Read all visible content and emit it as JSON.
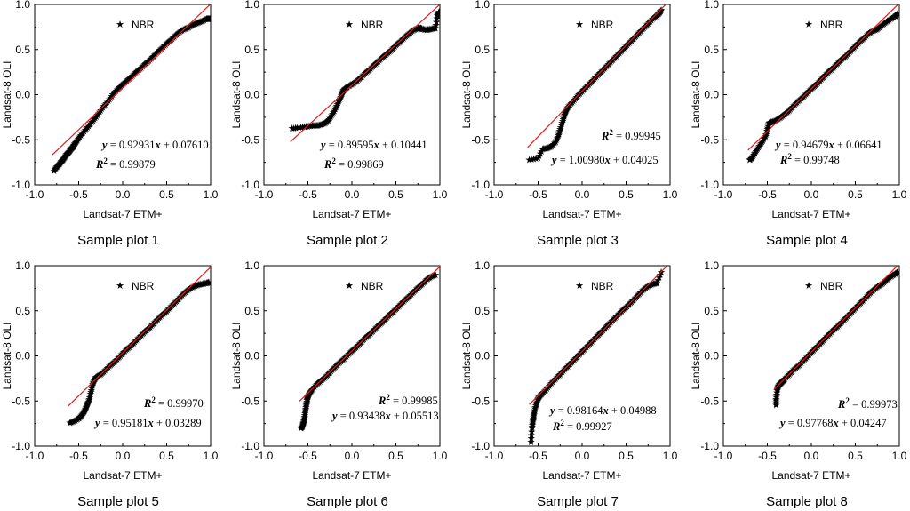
{
  "figure": {
    "legend_label": "NBR",
    "x_label": "Landsat-7 ETM+",
    "y_label": "Landsat-8 OLI",
    "tick_labels": [
      "-1.0",
      "-0.5",
      "0.0",
      "0.5",
      "1.0"
    ],
    "colors": {
      "fit_line": "#e31a1c",
      "points": "#000000"
    }
  },
  "chart_data": [
    {
      "type": "scatter",
      "title": "Sample plot 1",
      "xlabel": "Landsat-7 ETM+",
      "ylabel": "Landsat-8 OLI",
      "xlim": [
        -1.0,
        1.0
      ],
      "ylim": [
        -1.0,
        1.0
      ],
      "legend": "NBR",
      "fit": {
        "slope": 0.92931,
        "intercept": 0.0761,
        "r2": 0.99879
      },
      "equation": {
        "y_part": "y",
        "mid": " = 0.92931",
        "x_part": "x",
        "tail": " + 0.07610"
      },
      "r2_text": {
        "r_part": "R",
        "sup": "2",
        "tail": " = 0.99879"
      },
      "series": {
        "name": "NBR",
        "x": [
          -0.78,
          -0.75,
          -0.72,
          -0.7,
          -0.68,
          -0.66,
          -0.64,
          -0.62,
          -0.6,
          -0.58,
          -0.56,
          -0.55,
          -0.53,
          -0.5,
          -0.45,
          -0.4,
          -0.35,
          -0.3,
          -0.25,
          -0.2,
          -0.15,
          -0.1,
          -0.05,
          0.0,
          0.05,
          0.1,
          0.15,
          0.2,
          0.25,
          0.3,
          0.35,
          0.4,
          0.45,
          0.5,
          0.55,
          0.6,
          0.65,
          0.7,
          0.75,
          0.8,
          0.85,
          0.9,
          0.95,
          0.97,
          0.99
        ],
        "y": [
          -0.84,
          -0.8,
          -0.77,
          -0.74,
          -0.72,
          -0.69,
          -0.66,
          -0.64,
          -0.62,
          -0.59,
          -0.57,
          -0.55,
          -0.52,
          -0.48,
          -0.42,
          -0.36,
          -0.3,
          -0.24,
          -0.17,
          -0.11,
          -0.05,
          0.02,
          0.07,
          0.12,
          0.16,
          0.2,
          0.25,
          0.29,
          0.34,
          0.38,
          0.43,
          0.48,
          0.52,
          0.57,
          0.61,
          0.66,
          0.7,
          0.73,
          0.75,
          0.78,
          0.8,
          0.82,
          0.84,
          0.84,
          0.84
        ]
      }
    },
    {
      "type": "scatter",
      "title": "Sample plot 2",
      "xlabel": "Landsat-7 ETM+",
      "ylabel": "Landsat-8 OLI",
      "xlim": [
        -1.0,
        1.0
      ],
      "ylim": [
        -1.0,
        1.0
      ],
      "legend": "NBR",
      "fit": {
        "slope": 0.89595,
        "intercept": 0.10441,
        "r2": 0.99869
      },
      "equation": {
        "y_part": "y",
        "mid": " = 0.89595",
        "x_part": "x",
        "tail": " + 0.10441"
      },
      "r2_text": {
        "r_part": "R",
        "sup": "2",
        "tail": " = 0.99869"
      },
      "series": {
        "name": "NBR",
        "x": [
          -0.68,
          -0.6,
          -0.52,
          -0.45,
          -0.4,
          -0.35,
          -0.3,
          -0.26,
          -0.22,
          -0.18,
          -0.15,
          -0.12,
          -0.1,
          -0.08,
          -0.05,
          0.0,
          0.05,
          0.1,
          0.15,
          0.2,
          0.25,
          0.3,
          0.35,
          0.4,
          0.45,
          0.5,
          0.55,
          0.6,
          0.65,
          0.7,
          0.75,
          0.78,
          0.8,
          0.85,
          0.9,
          0.95,
          0.97,
          0.99
        ],
        "y": [
          -0.37,
          -0.36,
          -0.35,
          -0.34,
          -0.34,
          -0.33,
          -0.31,
          -0.27,
          -0.21,
          -0.14,
          -0.07,
          -0.01,
          0.04,
          0.07,
          0.09,
          0.12,
          0.15,
          0.19,
          0.24,
          0.28,
          0.33,
          0.37,
          0.42,
          0.46,
          0.5,
          0.55,
          0.59,
          0.64,
          0.68,
          0.72,
          0.74,
          0.74,
          0.73,
          0.72,
          0.73,
          0.74,
          0.88,
          0.92
        ]
      }
    },
    {
      "type": "scatter",
      "title": "Sample plot 3",
      "xlabel": "Landsat-7 ETM+",
      "ylabel": "Landsat-8 OLI",
      "xlim": [
        -1.0,
        1.0
      ],
      "ylim": [
        -1.0,
        1.0
      ],
      "legend": "NBR",
      "fit": {
        "slope": 1.0098,
        "intercept": 0.04025,
        "r2": 0.99945
      },
      "equation": {
        "y_part": "y",
        "mid": " = 1.00980",
        "x_part": "x",
        "tail": " + 0.04025"
      },
      "r2_text": {
        "r_part": "R",
        "sup": "2",
        "tail": " = 0.99945"
      },
      "series": {
        "name": "NBR",
        "x": [
          -0.6,
          -0.5,
          -0.45,
          -0.4,
          -0.35,
          -0.3,
          -0.27,
          -0.25,
          -0.22,
          -0.2,
          -0.18,
          -0.15,
          -0.1,
          -0.05,
          0.0,
          0.05,
          0.1,
          0.15,
          0.2,
          0.25,
          0.3,
          0.35,
          0.4,
          0.45,
          0.5,
          0.55,
          0.6,
          0.65,
          0.7,
          0.75,
          0.8,
          0.85,
          0.88,
          0.9
        ],
        "y": [
          -0.72,
          -0.7,
          -0.6,
          -0.59,
          -0.57,
          -0.52,
          -0.45,
          -0.38,
          -0.29,
          -0.22,
          -0.17,
          -0.12,
          -0.07,
          -0.01,
          0.04,
          0.09,
          0.14,
          0.19,
          0.24,
          0.29,
          0.34,
          0.39,
          0.44,
          0.49,
          0.54,
          0.59,
          0.64,
          0.69,
          0.74,
          0.79,
          0.84,
          0.88,
          0.91,
          0.94
        ]
      }
    },
    {
      "type": "scatter",
      "title": "Sample plot 4",
      "xlabel": "Landsat-7 ETM+",
      "ylabel": "Landsat-8 OLI",
      "xlim": [
        -1.0,
        1.0
      ],
      "ylim": [
        -1.0,
        1.0
      ],
      "legend": "NBR",
      "fit": {
        "slope": 0.94679,
        "intercept": 0.06641,
        "r2": 0.99748
      },
      "equation": {
        "y_part": "y",
        "mid": " = 0.94679",
        "x_part": "x",
        "tail": " + 0.06641"
      },
      "r2_text": {
        "r_part": "R",
        "sup": "2",
        "tail": " = 0.99748"
      },
      "series": {
        "name": "NBR",
        "x": [
          -0.7,
          -0.67,
          -0.64,
          -0.6,
          -0.56,
          -0.52,
          -0.5,
          -0.48,
          -0.45,
          -0.4,
          -0.35,
          -0.3,
          -0.25,
          -0.2,
          -0.15,
          -0.1,
          -0.05,
          0.0,
          0.05,
          0.1,
          0.15,
          0.2,
          0.25,
          0.3,
          0.35,
          0.4,
          0.45,
          0.5,
          0.55,
          0.6,
          0.65,
          0.7,
          0.75,
          0.8,
          0.85,
          0.9,
          0.95,
          0.98
        ],
        "y": [
          -0.72,
          -0.69,
          -0.64,
          -0.58,
          -0.52,
          -0.46,
          -0.38,
          -0.31,
          -0.3,
          -0.28,
          -0.25,
          -0.21,
          -0.17,
          -0.12,
          -0.07,
          -0.03,
          0.02,
          0.07,
          0.11,
          0.16,
          0.21,
          0.26,
          0.3,
          0.35,
          0.4,
          0.44,
          0.49,
          0.54,
          0.59,
          0.63,
          0.68,
          0.71,
          0.73,
          0.77,
          0.81,
          0.84,
          0.87,
          0.9
        ]
      }
    },
    {
      "type": "scatter",
      "title": "Sample plot 5",
      "xlabel": "Landsat-7 ETM+",
      "ylabel": "Landsat-8 OLI",
      "xlim": [
        -1.0,
        1.0
      ],
      "ylim": [
        -1.0,
        1.0
      ],
      "legend": "NBR",
      "fit": {
        "slope": 0.95181,
        "intercept": 0.03289,
        "r2": 0.9997
      },
      "equation": {
        "y_part": "y",
        "mid": " = 0.95181",
        "x_part": "x",
        "tail": " + 0.03289"
      },
      "r2_text": {
        "r_part": "R",
        "sup": "2",
        "tail": " = 0.99970"
      },
      "series": {
        "name": "NBR",
        "x": [
          -0.6,
          -0.55,
          -0.5,
          -0.47,
          -0.44,
          -0.42,
          -0.4,
          -0.38,
          -0.36,
          -0.34,
          -0.32,
          -0.3,
          -0.25,
          -0.2,
          -0.15,
          -0.1,
          -0.05,
          0.0,
          0.05,
          0.1,
          0.15,
          0.2,
          0.25,
          0.3,
          0.35,
          0.4,
          0.45,
          0.5,
          0.55,
          0.6,
          0.65,
          0.7,
          0.75,
          0.8,
          0.85,
          0.9,
          0.95,
          0.98
        ],
        "y": [
          -0.74,
          -0.72,
          -0.69,
          -0.66,
          -0.62,
          -0.58,
          -0.53,
          -0.48,
          -0.4,
          -0.31,
          -0.26,
          -0.23,
          -0.2,
          -0.16,
          -0.11,
          -0.07,
          -0.02,
          0.03,
          0.08,
          0.12,
          0.17,
          0.22,
          0.27,
          0.31,
          0.36,
          0.41,
          0.46,
          0.5,
          0.55,
          0.6,
          0.65,
          0.7,
          0.74,
          0.77,
          0.79,
          0.8,
          0.81,
          0.82
        ]
      }
    },
    {
      "type": "scatter",
      "title": "Sample plot 6",
      "xlabel": "Landsat-7 ETM+",
      "ylabel": "Landsat-8 OLI",
      "xlim": [
        -1.0,
        1.0
      ],
      "ylim": [
        -1.0,
        1.0
      ],
      "legend": "NBR",
      "fit": {
        "slope": 0.93438,
        "intercept": 0.05513,
        "r2": 0.99985
      },
      "equation": {
        "y_part": "y",
        "mid": " = 0.93438",
        "x_part": "x",
        "tail": " + 0.05513"
      },
      "r2_text": {
        "r_part": "R",
        "sup": "2",
        "tail": " = 0.99985"
      },
      "series": {
        "name": "NBR",
        "x": [
          -0.58,
          -0.56,
          -0.55,
          -0.54,
          -0.53,
          -0.52,
          -0.51,
          -0.5,
          -0.48,
          -0.45,
          -0.4,
          -0.35,
          -0.3,
          -0.25,
          -0.2,
          -0.15,
          -0.1,
          -0.05,
          0.0,
          0.05,
          0.1,
          0.15,
          0.2,
          0.25,
          0.3,
          0.35,
          0.4,
          0.45,
          0.5,
          0.55,
          0.6,
          0.65,
          0.7,
          0.75,
          0.8,
          0.85,
          0.9,
          0.95
        ],
        "y": [
          -0.8,
          -0.78,
          -0.74,
          -0.69,
          -0.62,
          -0.55,
          -0.49,
          -0.45,
          -0.41,
          -0.37,
          -0.31,
          -0.27,
          -0.23,
          -0.18,
          -0.13,
          -0.08,
          -0.04,
          0.01,
          0.06,
          0.1,
          0.15,
          0.2,
          0.24,
          0.29,
          0.34,
          0.38,
          0.43,
          0.48,
          0.52,
          0.57,
          0.62,
          0.66,
          0.71,
          0.76,
          0.8,
          0.85,
          0.88,
          0.9
        ]
      }
    },
    {
      "type": "scatter",
      "title": "Sample plot 7",
      "xlabel": "Landsat-7 ETM+",
      "ylabel": "Landsat-8 OLI",
      "xlim": [
        -1.0,
        1.0
      ],
      "ylim": [
        -1.0,
        1.0
      ],
      "legend": "NBR",
      "fit": {
        "slope": 0.98164,
        "intercept": 0.04988,
        "r2": 0.99927
      },
      "equation": {
        "y_part": "y",
        "mid": " = 0.98164",
        "x_part": "x",
        "tail": " + 0.04988"
      },
      "r2_text": {
        "r_part": "R",
        "sup": "2",
        "tail": " = 0.99927"
      },
      "series": {
        "name": "NBR",
        "x": [
          -0.58,
          -0.57,
          -0.56,
          -0.55,
          -0.54,
          -0.52,
          -0.5,
          -0.48,
          -0.45,
          -0.4,
          -0.35,
          -0.3,
          -0.25,
          -0.2,
          -0.15,
          -0.1,
          -0.05,
          0.0,
          0.05,
          0.1,
          0.15,
          0.2,
          0.25,
          0.3,
          0.35,
          0.4,
          0.45,
          0.5,
          0.55,
          0.6,
          0.65,
          0.7,
          0.75,
          0.8,
          0.85,
          0.9
        ],
        "y": [
          -0.95,
          -0.8,
          -0.73,
          -0.66,
          -0.6,
          -0.53,
          -0.47,
          -0.44,
          -0.41,
          -0.36,
          -0.3,
          -0.25,
          -0.2,
          -0.15,
          -0.1,
          -0.05,
          0.0,
          0.05,
          0.1,
          0.15,
          0.2,
          0.25,
          0.3,
          0.35,
          0.4,
          0.45,
          0.5,
          0.54,
          0.59,
          0.64,
          0.69,
          0.74,
          0.78,
          0.8,
          0.81,
          0.93
        ]
      }
    },
    {
      "type": "scatter",
      "title": "Sample plot 8",
      "xlabel": "Landsat-7 ETM+",
      "ylabel": "Landsat-8 OLI",
      "xlim": [
        -1.0,
        1.0
      ],
      "ylim": [
        -1.0,
        1.0
      ],
      "legend": "NBR",
      "fit": {
        "slope": 0.97768,
        "intercept": 0.04247,
        "r2": 0.99973
      },
      "equation": {
        "y_part": "y",
        "mid": " = 0.97768",
        "x_part": "x",
        "tail": " + 0.04247"
      },
      "r2_text": {
        "r_part": "R",
        "sup": "2",
        "tail": " = 0.99973"
      },
      "series": {
        "name": "NBR",
        "x": [
          -0.4,
          -0.4,
          -0.39,
          -0.38,
          -0.36,
          -0.34,
          -0.32,
          -0.3,
          -0.25,
          -0.2,
          -0.15,
          -0.1,
          -0.05,
          0.0,
          0.05,
          0.1,
          0.15,
          0.2,
          0.25,
          0.3,
          0.35,
          0.4,
          0.45,
          0.5,
          0.55,
          0.6,
          0.65,
          0.7,
          0.75,
          0.8,
          0.85,
          0.9,
          0.95,
          0.98
        ],
        "y": [
          -0.54,
          -0.48,
          -0.38,
          -0.34,
          -0.31,
          -0.29,
          -0.27,
          -0.25,
          -0.2,
          -0.15,
          -0.11,
          -0.06,
          -0.01,
          0.04,
          0.09,
          0.14,
          0.19,
          0.24,
          0.29,
          0.33,
          0.38,
          0.43,
          0.48,
          0.53,
          0.58,
          0.63,
          0.68,
          0.73,
          0.77,
          0.8,
          0.84,
          0.88,
          0.91,
          0.93
        ]
      }
    }
  ]
}
